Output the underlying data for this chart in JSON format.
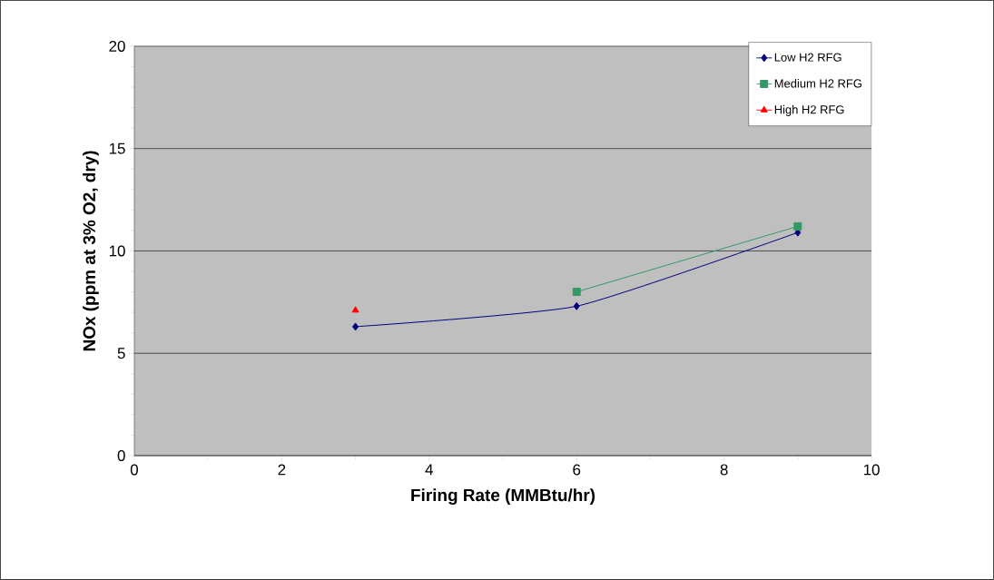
{
  "chart_data": {
    "type": "line",
    "xlabel": "Firing Rate (MMBtu/hr)",
    "ylabel": "NOx (ppm at 3% O2, dry)",
    "xlim": [
      0,
      10
    ],
    "xticks": [
      0,
      2,
      4,
      6,
      8,
      10
    ],
    "ylim": [
      0,
      20
    ],
    "yticks": [
      0,
      5,
      10,
      15,
      20
    ],
    "grid": "y",
    "legend": "top right",
    "series": [
      {
        "name": "Low  H2 RFG",
        "color": "#000080",
        "marker": "diamond",
        "x": [
          3,
          6,
          9
        ],
        "values": [
          6.3,
          7.3,
          10.9
        ]
      },
      {
        "name": "Medium H2 RFG",
        "color": "#339966",
        "marker": "square",
        "x": [
          6,
          9
        ],
        "values": [
          8.0,
          11.2
        ]
      },
      {
        "name": "High H2 RFG",
        "color": "#ff0000",
        "marker": "triangle",
        "x": [
          3
        ],
        "values": [
          7.1
        ]
      }
    ]
  }
}
